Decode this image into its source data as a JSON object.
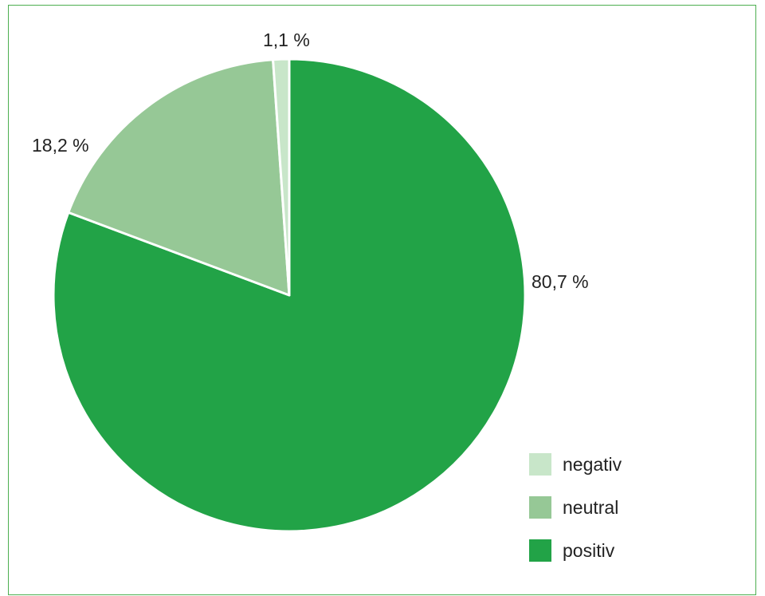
{
  "chart_data": {
    "type": "pie",
    "categories": [
      "negativ",
      "neutral",
      "positiv"
    ],
    "values": [
      1.1,
      18.2,
      80.7
    ],
    "data_labels": [
      "1,1 %",
      "18,2 %",
      "80,7 %"
    ],
    "colors": [
      "#c8e6c9",
      "#96c896",
      "#22a347"
    ],
    "legend_position": "bottom-right",
    "title": ""
  }
}
